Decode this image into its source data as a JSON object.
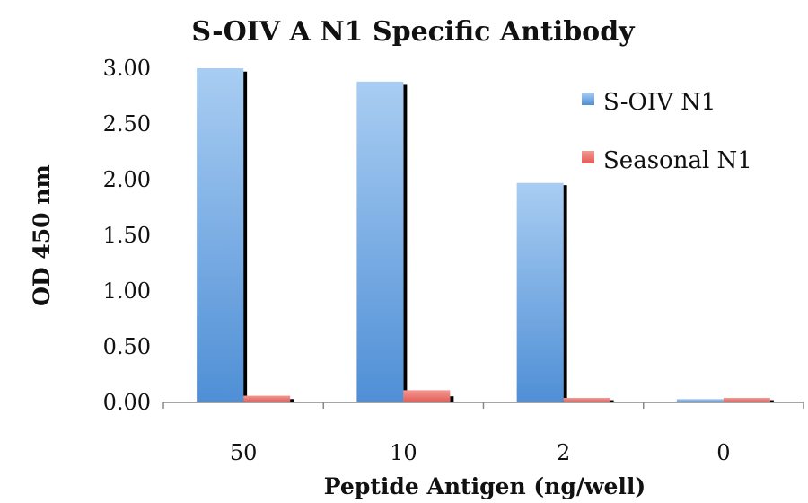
{
  "chart_data": {
    "type": "bar",
    "title": "S-OIV A N1 Specific Antibody",
    "xlabel": "Peptide Antigen (ng/well)",
    "ylabel": "OD 450 nm",
    "categories": [
      "50",
      "10",
      "2",
      "0"
    ],
    "series": [
      {
        "name": "S-OIV N1",
        "values": [
          3.0,
          2.88,
          1.97,
          0.03
        ],
        "color": "#5b9bd5"
      },
      {
        "name": "Seasonal N1",
        "values": [
          0.06,
          0.11,
          0.04,
          0.04
        ],
        "color": "#e8625f"
      }
    ],
    "ylim": [
      0,
      3.0
    ],
    "yticks": [
      "0.00",
      "0.50",
      "1.00",
      "1.50",
      "2.00",
      "2.50",
      "3.00"
    ],
    "grid": false,
    "legend_position": "right"
  }
}
